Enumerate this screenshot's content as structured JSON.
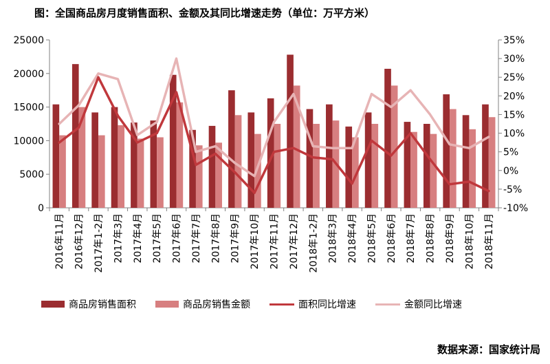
{
  "title": "图：全国商品房月度销售面积、金额及其同比增速走势（单位：万平方米）",
  "source": "数据来源：国家统计局",
  "colors": {
    "area_bar": "#9b2d30",
    "amount_bar": "#d77f80",
    "area_growth": "#c0383c",
    "amount_growth": "#e7b4b5",
    "axis": "#808080"
  },
  "chart_data": {
    "type": "bar",
    "categories": [
      "2016年11月",
      "2016年12月",
      "2017年1-2月",
      "2017年3月",
      "2017年4月",
      "2017年5月",
      "2017年6月",
      "2017年7月",
      "2017年8月",
      "2017年9月",
      "2017年10月",
      "2017年11月",
      "2017年12月",
      "2018年1-2月",
      "2018年3月",
      "2018年4月",
      "2018年5月",
      "2018年6月",
      "2018年7月",
      "2018年8月",
      "2018年9月",
      "2018年10月",
      "2018年11月"
    ],
    "y_left": {
      "min": 0,
      "max": 25000,
      "step": 5000,
      "ticks": [
        "0",
        "5000",
        "10000",
        "15000",
        "20000",
        "25000"
      ]
    },
    "y_right": {
      "min": -10,
      "max": 35,
      "step": 5,
      "ticks": [
        "-10%",
        "-5%",
        "0%",
        "5%",
        "10%",
        "15%",
        "20%",
        "25%",
        "30%",
        "35%"
      ]
    },
    "series": [
      {
        "name": "商品房销售面积",
        "kind": "bar",
        "axis": "left",
        "values": [
          15400,
          21400,
          14200,
          15000,
          12700,
          13000,
          19800,
          11600,
          12200,
          17500,
          14200,
          16300,
          22800,
          14700,
          15400,
          12100,
          14200,
          20700,
          12800,
          12500,
          16900,
          13800,
          15400
        ]
      },
      {
        "name": "商品房销售金额",
        "kind": "bar",
        "axis": "left",
        "values": [
          10800,
          15000,
          10800,
          12300,
          10300,
          10500,
          15700,
          9300,
          9700,
          13800,
          11000,
          12500,
          18200,
          12500,
          13000,
          10500,
          12500,
          18200,
          11300,
          11000,
          14700,
          11700,
          13500
        ]
      },
      {
        "name": "面积同比增速",
        "kind": "line",
        "axis": "right",
        "values": [
          7.5,
          11.5,
          25.0,
          14.7,
          7.5,
          10.0,
          21.0,
          1.5,
          4.5,
          -0.5,
          -6.0,
          5.0,
          6.0,
          3.5,
          3.0,
          -3.5,
          8.0,
          4.0,
          10.0,
          3.0,
          -3.7,
          -3.0,
          -5.5
        ]
      },
      {
        "name": "金额同比增速",
        "kind": "line",
        "axis": "right",
        "values": [
          12.5,
          17.5,
          26.0,
          24.5,
          9.5,
          13.0,
          30.0,
          5.0,
          6.5,
          2.0,
          -1.5,
          13.0,
          20.5,
          6.5,
          6.0,
          6.0,
          20.5,
          17.0,
          21.5,
          15.0,
          7.0,
          6.0,
          9.0
        ]
      }
    ],
    "legend_position": "bottom",
    "grid": false
  }
}
